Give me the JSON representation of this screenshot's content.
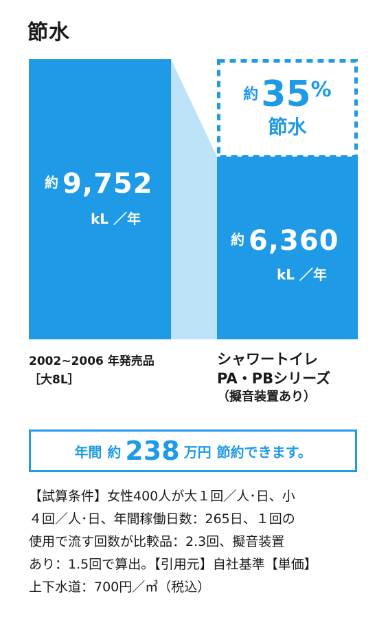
{
  "title": "節水",
  "chart_data": {
    "type": "bar",
    "categories": [
      "2002~2006年発売品［大8L］",
      "シャワートイレPA・PBシリーズ（擬音装置あり）"
    ],
    "values": [
      9752,
      6360
    ],
    "unit": "kL／年",
    "ylim": [
      0,
      9752
    ],
    "colors": {
      "bar": "#1e9ae6",
      "connector": "#bde3f8",
      "accent": "#1e9ae6"
    }
  },
  "bars": {
    "old": {
      "prefix": "約",
      "value": "9,752",
      "unit": "kL ／年"
    },
    "new": {
      "prefix": "約",
      "value": "6,360",
      "unit": "kL ／年"
    }
  },
  "saving": {
    "prefix": "約",
    "value": "35",
    "percent": "%",
    "label": "節水"
  },
  "categories": {
    "old": {
      "line1": "2002~2006 年発売品",
      "line2": "［大8L］"
    },
    "new": {
      "line1": "シャワートイレ",
      "line2": "PA・PBシリーズ",
      "line3": "（擬音装置あり）"
    }
  },
  "annual": {
    "pre1": "年間",
    "pre2": "約",
    "value": "238",
    "unit": "万円",
    "post": "節約できます。"
  },
  "notes": [
    "【試算条件】女性400人が大１回／人･日、小",
    "４回／人･日、年間稼働日数：265日、１回の",
    "使用で流す回数が比較品：2.3回、擬音装置",
    "あり：1.5回で算出。【引用元】自社基準【単価】",
    "上下水道：700円／㎥（税込）"
  ]
}
